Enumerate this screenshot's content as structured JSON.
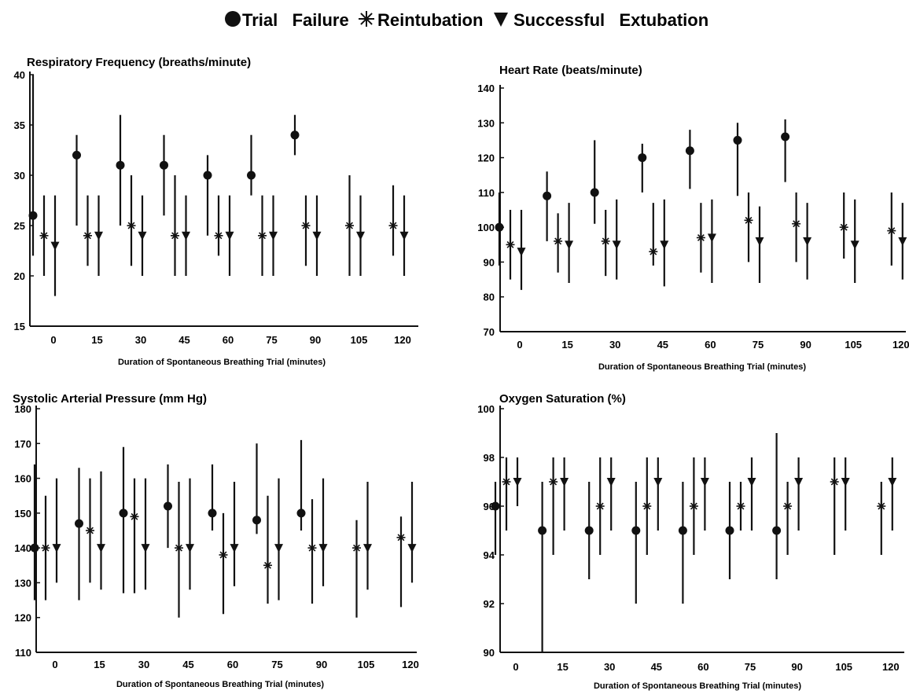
{
  "legend": {
    "items": [
      {
        "label": "Trial   Failure",
        "marker": "circle"
      },
      {
        "label": "Reintubation",
        "marker": "asterisk"
      },
      {
        "label": "Successful   Extubation",
        "marker": "triangle-down"
      }
    ]
  },
  "chart_data": [
    {
      "type": "scatter",
      "title": "Respiratory  Frequency  (breaths/minute)",
      "xlabel": "Duration of Spontaneous Breathing Trial (minutes)",
      "ylabel": "",
      "x_ticks": [
        0,
        15,
        30,
        45,
        60,
        75,
        90,
        105,
        120
      ],
      "ylim": [
        15,
        40
      ],
      "y_ticks": [
        15,
        20,
        25,
        30,
        35,
        40
      ],
      "series": [
        {
          "marker": "circle",
          "points": [
            {
              "x": 0,
              "y": 26,
              "lo": 22,
              "hi": 40
            },
            {
              "x": 15,
              "y": 32,
              "lo": 25,
              "hi": 34
            },
            {
              "x": 30,
              "y": 31,
              "lo": 25,
              "hi": 36
            },
            {
              "x": 45,
              "y": 31,
              "lo": 26,
              "hi": 34
            },
            {
              "x": 60,
              "y": 30,
              "lo": 24,
              "hi": 32
            },
            {
              "x": 75,
              "y": 30,
              "lo": 28,
              "hi": 34
            },
            {
              "x": 90,
              "y": 34,
              "lo": 32,
              "hi": 36
            }
          ]
        },
        {
          "marker": "asterisk",
          "points": [
            {
              "x": 0,
              "y": 24,
              "lo": 20,
              "hi": 28
            },
            {
              "x": 15,
              "y": 24,
              "lo": 21,
              "hi": 28
            },
            {
              "x": 30,
              "y": 25,
              "lo": 21,
              "hi": 30
            },
            {
              "x": 45,
              "y": 24,
              "lo": 20,
              "hi": 30
            },
            {
              "x": 60,
              "y": 24,
              "lo": 22,
              "hi": 28
            },
            {
              "x": 75,
              "y": 24,
              "lo": 20,
              "hi": 28
            },
            {
              "x": 90,
              "y": 25,
              "lo": 21,
              "hi": 28
            },
            {
              "x": 105,
              "y": 25,
              "lo": 20,
              "hi": 30
            },
            {
              "x": 120,
              "y": 25,
              "lo": 22,
              "hi": 29
            }
          ]
        },
        {
          "marker": "triangle-down",
          "points": [
            {
              "x": 0,
              "y": 23,
              "lo": 18,
              "hi": 28
            },
            {
              "x": 15,
              "y": 24,
              "lo": 20,
              "hi": 28
            },
            {
              "x": 30,
              "y": 24,
              "lo": 20,
              "hi": 28
            },
            {
              "x": 45,
              "y": 24,
              "lo": 20,
              "hi": 28
            },
            {
              "x": 60,
              "y": 24,
              "lo": 20,
              "hi": 28
            },
            {
              "x": 75,
              "y": 24,
              "lo": 20,
              "hi": 28
            },
            {
              "x": 90,
              "y": 24,
              "lo": 20,
              "hi": 28
            },
            {
              "x": 105,
              "y": 24,
              "lo": 20,
              "hi": 28
            },
            {
              "x": 120,
              "y": 24,
              "lo": 20,
              "hi": 28
            }
          ]
        }
      ]
    },
    {
      "type": "scatter",
      "title": "Heart  Rate (beats/minute)",
      "xlabel": "Duration  of  Spontaneous  Breathing  Trial  (minutes)",
      "ylabel": "",
      "x_ticks": [
        0,
        15,
        30,
        45,
        60,
        75,
        90,
        105,
        120
      ],
      "ylim": [
        70,
        140
      ],
      "y_ticks": [
        70,
        80,
        90,
        100,
        110,
        120,
        130,
        140
      ],
      "series": [
        {
          "marker": "circle",
          "points": [
            {
              "x": 0,
              "y": 100,
              "lo": 89,
              "hi": 110
            },
            {
              "x": 15,
              "y": 109,
              "lo": 96,
              "hi": 116
            },
            {
              "x": 30,
              "y": 110,
              "lo": 101,
              "hi": 125
            },
            {
              "x": 45,
              "y": 120,
              "lo": 110,
              "hi": 124
            },
            {
              "x": 60,
              "y": 122,
              "lo": 111,
              "hi": 128
            },
            {
              "x": 75,
              "y": 125,
              "lo": 109,
              "hi": 130
            },
            {
              "x": 90,
              "y": 126,
              "lo": 113,
              "hi": 131
            }
          ]
        },
        {
          "marker": "asterisk",
          "points": [
            {
              "x": 0,
              "y": 95,
              "lo": 85,
              "hi": 105
            },
            {
              "x": 15,
              "y": 96,
              "lo": 87,
              "hi": 104
            },
            {
              "x": 30,
              "y": 96,
              "lo": 86,
              "hi": 105
            },
            {
              "x": 45,
              "y": 93,
              "lo": 89,
              "hi": 107
            },
            {
              "x": 60,
              "y": 97,
              "lo": 87,
              "hi": 107
            },
            {
              "x": 75,
              "y": 102,
              "lo": 90,
              "hi": 110
            },
            {
              "x": 90,
              "y": 101,
              "lo": 90,
              "hi": 110
            },
            {
              "x": 105,
              "y": 100,
              "lo": 91,
              "hi": 110
            },
            {
              "x": 120,
              "y": 99,
              "lo": 89,
              "hi": 110
            }
          ]
        },
        {
          "marker": "triangle-down",
          "points": [
            {
              "x": 0,
              "y": 93,
              "lo": 82,
              "hi": 105
            },
            {
              "x": 15,
              "y": 95,
              "lo": 84,
              "hi": 107
            },
            {
              "x": 30,
              "y": 95,
              "lo": 85,
              "hi": 108
            },
            {
              "x": 45,
              "y": 95,
              "lo": 83,
              "hi": 108
            },
            {
              "x": 60,
              "y": 97,
              "lo": 84,
              "hi": 108
            },
            {
              "x": 75,
              "y": 96,
              "lo": 84,
              "hi": 106
            },
            {
              "x": 90,
              "y": 96,
              "lo": 85,
              "hi": 107
            },
            {
              "x": 105,
              "y": 95,
              "lo": 84,
              "hi": 108
            },
            {
              "x": 120,
              "y": 96,
              "lo": 85,
              "hi": 107
            }
          ]
        }
      ]
    },
    {
      "type": "scatter",
      "title": "Systolic Arterial Pressure (mm Hg)",
      "xlabel": "Duration of Spontaneous Breathing Trial (minutes)",
      "ylabel": "",
      "x_ticks": [
        0,
        15,
        30,
        45,
        60,
        75,
        90,
        105,
        120
      ],
      "ylim": [
        110,
        180
      ],
      "y_ticks": [
        110,
        120,
        130,
        140,
        150,
        160,
        170,
        180
      ],
      "series": [
        {
          "marker": "circle",
          "points": [
            {
              "x": 0,
              "y": 140,
              "lo": 125,
              "hi": 164
            },
            {
              "x": 15,
              "y": 147,
              "lo": 125,
              "hi": 163
            },
            {
              "x": 30,
              "y": 150,
              "lo": 127,
              "hi": 169
            },
            {
              "x": 45,
              "y": 152,
              "lo": 140,
              "hi": 164
            },
            {
              "x": 60,
              "y": 150,
              "lo": 145,
              "hi": 164
            },
            {
              "x": 75,
              "y": 148,
              "lo": 144,
              "hi": 170
            },
            {
              "x": 90,
              "y": 150,
              "lo": 145,
              "hi": 171
            }
          ]
        },
        {
          "marker": "asterisk",
          "points": [
            {
              "x": 0,
              "y": 140,
              "lo": 125,
              "hi": 155
            },
            {
              "x": 15,
              "y": 145,
              "lo": 130,
              "hi": 160
            },
            {
              "x": 30,
              "y": 149,
              "lo": 127,
              "hi": 160
            },
            {
              "x": 45,
              "y": 140,
              "lo": 120,
              "hi": 159
            },
            {
              "x": 60,
              "y": 138,
              "lo": 121,
              "hi": 150
            },
            {
              "x": 75,
              "y": 135,
              "lo": 124,
              "hi": 155
            },
            {
              "x": 90,
              "y": 140,
              "lo": 124,
              "hi": 154
            },
            {
              "x": 105,
              "y": 140,
              "lo": 120,
              "hi": 148
            },
            {
              "x": 120,
              "y": 143,
              "lo": 123,
              "hi": 149
            }
          ]
        },
        {
          "marker": "triangle-down",
          "points": [
            {
              "x": 0,
              "y": 140,
              "lo": 130,
              "hi": 160
            },
            {
              "x": 15,
              "y": 140,
              "lo": 128,
              "hi": 162
            },
            {
              "x": 30,
              "y": 140,
              "lo": 128,
              "hi": 160
            },
            {
              "x": 45,
              "y": 140,
              "lo": 128,
              "hi": 160
            },
            {
              "x": 60,
              "y": 140,
              "lo": 129,
              "hi": 159
            },
            {
              "x": 75,
              "y": 140,
              "lo": 125,
              "hi": 160
            },
            {
              "x": 90,
              "y": 140,
              "lo": 129,
              "hi": 160
            },
            {
              "x": 105,
              "y": 140,
              "lo": 128,
              "hi": 159
            },
            {
              "x": 120,
              "y": 140,
              "lo": 130,
              "hi": 159
            }
          ]
        }
      ]
    },
    {
      "type": "scatter",
      "title": "Oxygen  Saturation (%)",
      "xlabel": "Duration  of  Spontaneous  Breathing  Trial  (minutes)",
      "ylabel": "",
      "x_ticks": [
        0,
        15,
        30,
        45,
        60,
        75,
        90,
        105,
        120
      ],
      "ylim": [
        90,
        100
      ],
      "y_ticks": [
        90,
        92,
        94,
        96,
        98,
        100
      ],
      "series": [
        {
          "marker": "circle",
          "points": [
            {
              "x": 0,
              "y": 96,
              "lo": 94,
              "hi": 97
            },
            {
              "x": 15,
              "y": 95,
              "lo": 90,
              "hi": 97
            },
            {
              "x": 30,
              "y": 95,
              "lo": 93,
              "hi": 97
            },
            {
              "x": 45,
              "y": 95,
              "lo": 92,
              "hi": 97
            },
            {
              "x": 60,
              "y": 95,
              "lo": 92,
              "hi": 97
            },
            {
              "x": 75,
              "y": 95,
              "lo": 93,
              "hi": 97
            },
            {
              "x": 90,
              "y": 95,
              "lo": 93,
              "hi": 99
            }
          ]
        },
        {
          "marker": "asterisk",
          "points": [
            {
              "x": 0,
              "y": 97,
              "lo": 95,
              "hi": 98
            },
            {
              "x": 15,
              "y": 97,
              "lo": 94,
              "hi": 98
            },
            {
              "x": 30,
              "y": 96,
              "lo": 94,
              "hi": 98
            },
            {
              "x": 45,
              "y": 96,
              "lo": 94,
              "hi": 98
            },
            {
              "x": 60,
              "y": 96,
              "lo": 94,
              "hi": 98
            },
            {
              "x": 75,
              "y": 96,
              "lo": 95,
              "hi": 97
            },
            {
              "x": 90,
              "y": 96,
              "lo": 94,
              "hi": 97
            },
            {
              "x": 105,
              "y": 97,
              "lo": 94,
              "hi": 98
            },
            {
              "x": 120,
              "y": 96,
              "lo": 94,
              "hi": 97
            }
          ]
        },
        {
          "marker": "triangle-down",
          "points": [
            {
              "x": 0,
              "y": 97,
              "lo": 96,
              "hi": 98
            },
            {
              "x": 15,
              "y": 97,
              "lo": 95,
              "hi": 98
            },
            {
              "x": 30,
              "y": 97,
              "lo": 95,
              "hi": 98
            },
            {
              "x": 45,
              "y": 97,
              "lo": 95,
              "hi": 98
            },
            {
              "x": 60,
              "y": 97,
              "lo": 95,
              "hi": 98
            },
            {
              "x": 75,
              "y": 97,
              "lo": 95,
              "hi": 98
            },
            {
              "x": 90,
              "y": 97,
              "lo": 95,
              "hi": 98
            },
            {
              "x": 105,
              "y": 97,
              "lo": 95,
              "hi": 98
            },
            {
              "x": 120,
              "y": 97,
              "lo": 95,
              "hi": 98
            }
          ]
        }
      ]
    }
  ]
}
